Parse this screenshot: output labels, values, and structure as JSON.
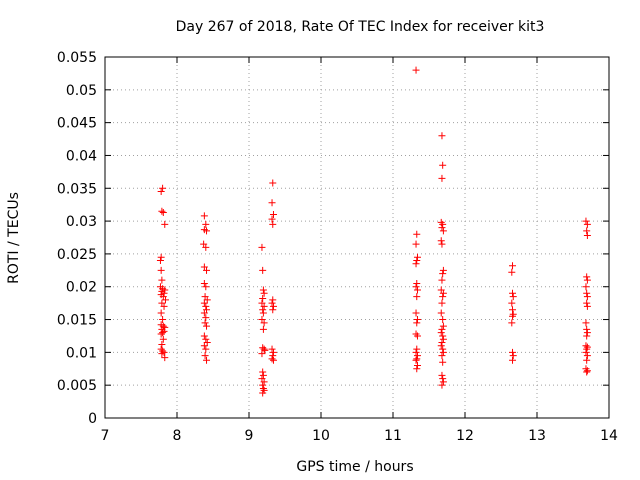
{
  "chart_data": {
    "type": "scatter",
    "title": "Day 267 of 2018, Rate Of TEC Index for receiver kit3",
    "xlabel": "GPS time / hours",
    "ylabel": "ROTI / TECUs",
    "xlim": [
      7,
      14
    ],
    "ylim": [
      0,
      0.055
    ],
    "xticks": [
      7,
      8,
      9,
      10,
      11,
      12,
      13,
      14
    ],
    "xtick_labels": [
      "7",
      "8",
      "9",
      "10",
      "11",
      "12",
      "13",
      "14"
    ],
    "yticks": [
      0,
      0.005,
      0.01,
      0.015,
      0.02,
      0.025,
      0.03,
      0.035,
      0.04,
      0.045,
      0.05,
      0.055
    ],
    "ytick_labels": [
      "0",
      "0.005",
      "0.01",
      "0.015",
      "0.02",
      "0.025",
      "0.03",
      "0.035",
      "0.04",
      "0.045",
      "0.05",
      "0.055"
    ],
    "grid": true,
    "marker": "+",
    "marker_color": "#ff0000",
    "series": [
      {
        "name": "kit3",
        "points": [
          [
            7.78,
            0.0345
          ],
          [
            7.8,
            0.035
          ],
          [
            7.79,
            0.0315
          ],
          [
            7.81,
            0.0313
          ],
          [
            7.83,
            0.0295
          ],
          [
            7.78,
            0.0245
          ],
          [
            7.77,
            0.024
          ],
          [
            7.78,
            0.0225
          ],
          [
            7.79,
            0.021
          ],
          [
            7.77,
            0.02
          ],
          [
            7.8,
            0.0197
          ],
          [
            7.83,
            0.0195
          ],
          [
            7.79,
            0.0193
          ],
          [
            7.82,
            0.019
          ],
          [
            7.78,
            0.0188
          ],
          [
            7.81,
            0.0185
          ],
          [
            7.84,
            0.018
          ],
          [
            7.79,
            0.0175
          ],
          [
            7.82,
            0.017
          ],
          [
            7.78,
            0.016
          ],
          [
            7.8,
            0.015
          ],
          [
            7.78,
            0.0142
          ],
          [
            7.81,
            0.014
          ],
          [
            7.83,
            0.0138
          ],
          [
            7.79,
            0.0135
          ],
          [
            7.82,
            0.0132
          ],
          [
            7.8,
            0.013
          ],
          [
            7.78,
            0.0128
          ],
          [
            7.81,
            0.012
          ],
          [
            7.79,
            0.0112
          ],
          [
            7.78,
            0.0105
          ],
          [
            7.8,
            0.0102
          ],
          [
            7.82,
            0.01
          ],
          [
            7.79,
            0.0098
          ],
          [
            7.83,
            0.0092
          ],
          [
            8.38,
            0.0308
          ],
          [
            8.4,
            0.0295
          ],
          [
            8.38,
            0.0287
          ],
          [
            8.41,
            0.0285
          ],
          [
            8.37,
            0.0265
          ],
          [
            8.4,
            0.026
          ],
          [
            8.38,
            0.023
          ],
          [
            8.41,
            0.0225
          ],
          [
            8.38,
            0.0205
          ],
          [
            8.4,
            0.02
          ],
          [
            8.39,
            0.0185
          ],
          [
            8.42,
            0.018
          ],
          [
            8.38,
            0.0175
          ],
          [
            8.4,
            0.017
          ],
          [
            8.41,
            0.0165
          ],
          [
            8.38,
            0.016
          ],
          [
            8.4,
            0.0153
          ],
          [
            8.39,
            0.0145
          ],
          [
            8.41,
            0.014
          ],
          [
            8.38,
            0.0125
          ],
          [
            8.4,
            0.012
          ],
          [
            8.42,
            0.0115
          ],
          [
            8.38,
            0.011
          ],
          [
            8.4,
            0.0105
          ],
          [
            8.39,
            0.0095
          ],
          [
            8.41,
            0.0088
          ],
          [
            9.33,
            0.0358
          ],
          [
            9.32,
            0.0328
          ],
          [
            9.34,
            0.031
          ],
          [
            9.32,
            0.0303
          ],
          [
            9.33,
            0.0295
          ],
          [
            9.18,
            0.026
          ],
          [
            9.19,
            0.0225
          ],
          [
            9.2,
            0.0195
          ],
          [
            9.21,
            0.019
          ],
          [
            9.19,
            0.0182
          ],
          [
            9.18,
            0.0175
          ],
          [
            9.21,
            0.017
          ],
          [
            9.19,
            0.0165
          ],
          [
            9.2,
            0.016
          ],
          [
            9.18,
            0.015
          ],
          [
            9.21,
            0.0145
          ],
          [
            9.2,
            0.0135
          ],
          [
            9.19,
            0.0107
          ],
          [
            9.21,
            0.0105
          ],
          [
            9.22,
            0.0103
          ],
          [
            9.18,
            0.0098
          ],
          [
            9.19,
            0.007
          ],
          [
            9.2,
            0.0065
          ],
          [
            9.18,
            0.006
          ],
          [
            9.21,
            0.0055
          ],
          [
            9.19,
            0.005
          ],
          [
            9.2,
            0.0045
          ],
          [
            9.21,
            0.0042
          ],
          [
            9.19,
            0.0038
          ],
          [
            9.33,
            0.018
          ],
          [
            9.32,
            0.0175
          ],
          [
            9.34,
            0.017
          ],
          [
            9.33,
            0.0165
          ],
          [
            9.32,
            0.0105
          ],
          [
            9.34,
            0.01
          ],
          [
            9.33,
            0.0095
          ],
          [
            9.32,
            0.009
          ],
          [
            9.34,
            0.0088
          ],
          [
            11.32,
            0.053
          ],
          [
            11.33,
            0.028
          ],
          [
            11.32,
            0.0265
          ],
          [
            11.34,
            0.0245
          ],
          [
            11.33,
            0.024
          ],
          [
            11.32,
            0.0235
          ],
          [
            11.33,
            0.0205
          ],
          [
            11.32,
            0.02
          ],
          [
            11.34,
            0.0195
          ],
          [
            11.33,
            0.0185
          ],
          [
            11.32,
            0.016
          ],
          [
            11.34,
            0.015
          ],
          [
            11.33,
            0.0145
          ],
          [
            11.32,
            0.0128
          ],
          [
            11.34,
            0.0125
          ],
          [
            11.33,
            0.0105
          ],
          [
            11.32,
            0.01
          ],
          [
            11.34,
            0.0095
          ],
          [
            11.33,
            0.009
          ],
          [
            11.32,
            0.0088
          ],
          [
            11.34,
            0.008
          ],
          [
            11.33,
            0.0075
          ],
          [
            11.68,
            0.043
          ],
          [
            11.69,
            0.0385
          ],
          [
            11.68,
            0.0365
          ],
          [
            11.67,
            0.0298
          ],
          [
            11.69,
            0.0295
          ],
          [
            11.68,
            0.029
          ],
          [
            11.7,
            0.0285
          ],
          [
            11.67,
            0.027
          ],
          [
            11.68,
            0.0265
          ],
          [
            11.7,
            0.0225
          ],
          [
            11.69,
            0.022
          ],
          [
            11.68,
            0.021
          ],
          [
            11.67,
            0.0195
          ],
          [
            11.7,
            0.019
          ],
          [
            11.69,
            0.0185
          ],
          [
            11.68,
            0.0175
          ],
          [
            11.67,
            0.016
          ],
          [
            11.69,
            0.015
          ],
          [
            11.7,
            0.014
          ],
          [
            11.68,
            0.0135
          ],
          [
            11.67,
            0.013
          ],
          [
            11.69,
            0.0125
          ],
          [
            11.7,
            0.012
          ],
          [
            11.68,
            0.0115
          ],
          [
            11.67,
            0.011
          ],
          [
            11.69,
            0.0105
          ],
          [
            11.7,
            0.01
          ],
          [
            11.68,
            0.0095
          ],
          [
            11.69,
            0.0085
          ],
          [
            11.68,
            0.0065
          ],
          [
            11.69,
            0.006
          ],
          [
            11.7,
            0.0055
          ],
          [
            11.68,
            0.005
          ],
          [
            12.66,
            0.0232
          ],
          [
            12.65,
            0.0222
          ],
          [
            12.66,
            0.019
          ],
          [
            12.67,
            0.0185
          ],
          [
            12.65,
            0.0175
          ],
          [
            12.66,
            0.0165
          ],
          [
            12.67,
            0.0158
          ],
          [
            12.66,
            0.0155
          ],
          [
            12.65,
            0.0145
          ],
          [
            12.66,
            0.01
          ],
          [
            12.67,
            0.0095
          ],
          [
            12.66,
            0.0088
          ],
          [
            13.68,
            0.03
          ],
          [
            13.7,
            0.0295
          ],
          [
            13.69,
            0.0285
          ],
          [
            13.7,
            0.0278
          ],
          [
            13.69,
            0.0215
          ],
          [
            13.7,
            0.021
          ],
          [
            13.68,
            0.02
          ],
          [
            13.69,
            0.019
          ],
          [
            13.7,
            0.0185
          ],
          [
            13.69,
            0.0175
          ],
          [
            13.7,
            0.017
          ],
          [
            13.68,
            0.0145
          ],
          [
            13.69,
            0.0135
          ],
          [
            13.7,
            0.013
          ],
          [
            13.69,
            0.0125
          ],
          [
            13.68,
            0.011
          ],
          [
            13.7,
            0.0108
          ],
          [
            13.69,
            0.0105
          ],
          [
            13.68,
            0.01
          ],
          [
            13.7,
            0.0095
          ],
          [
            13.69,
            0.0088
          ],
          [
            13.68,
            0.0075
          ],
          [
            13.7,
            0.0072
          ],
          [
            13.69,
            0.007
          ]
        ]
      }
    ]
  }
}
